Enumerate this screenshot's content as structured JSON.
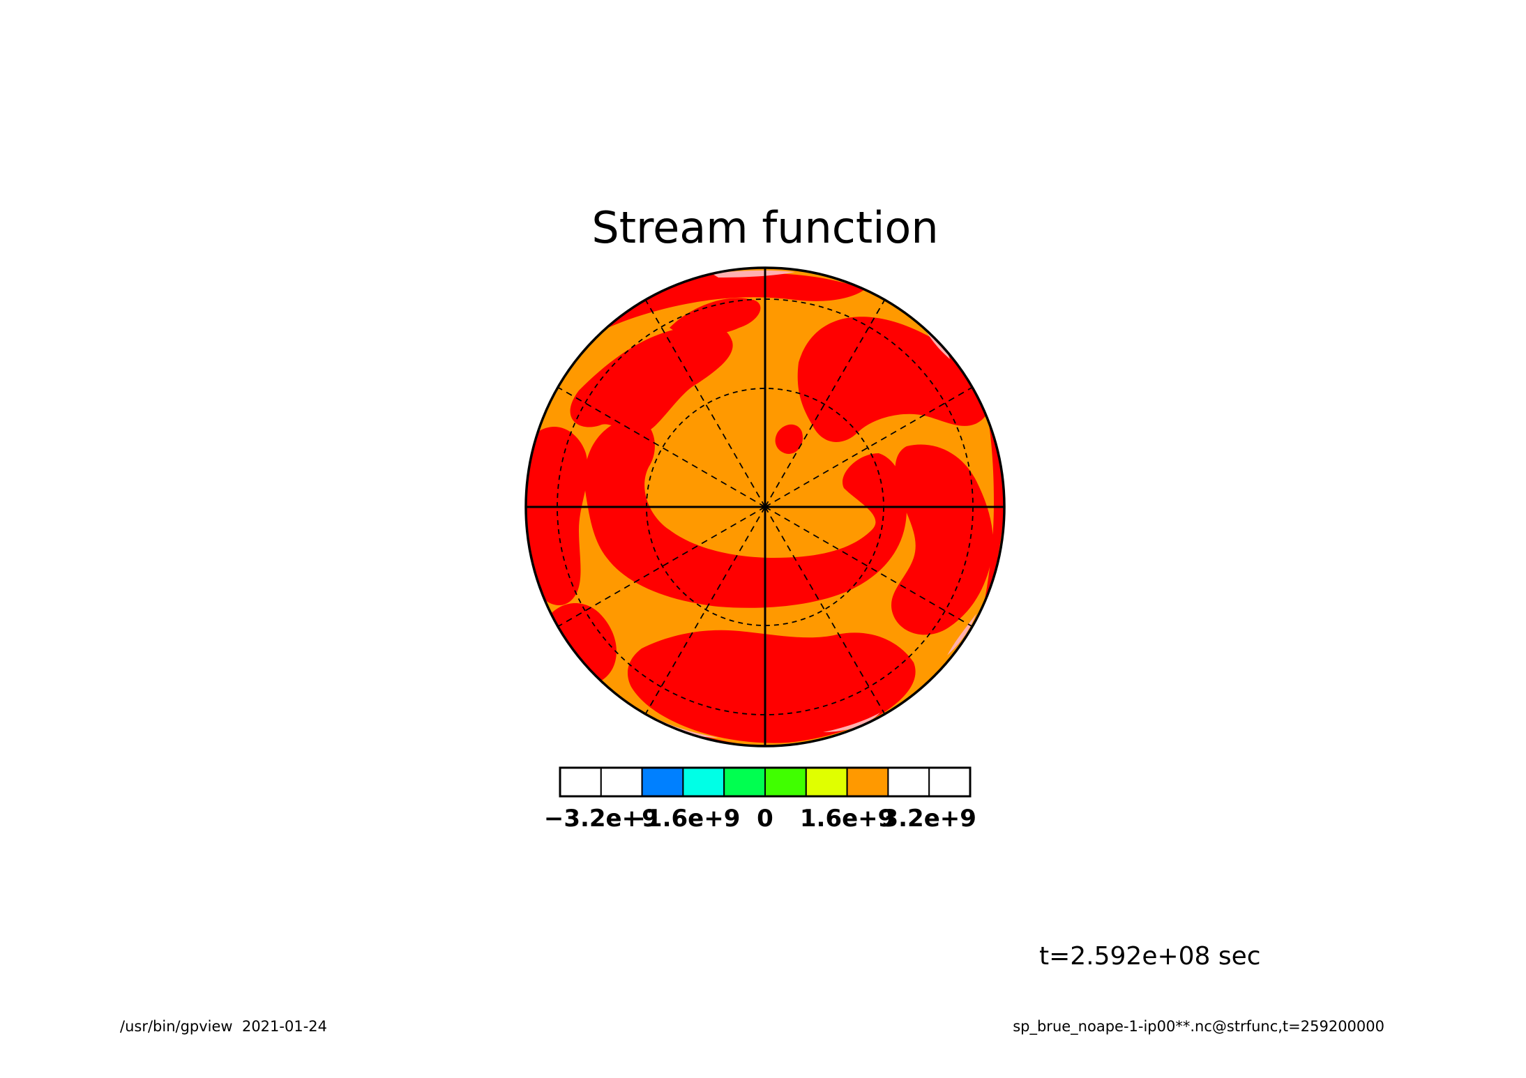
{
  "chart_data": {
    "type": "heatmap",
    "projection": "polar stereographic",
    "title": "Stream function",
    "colorbar": {
      "tick_labels": [
        "−3.2e+9",
        "−1.6e+9",
        "0",
        "1.6e+9",
        "3.2e+9"
      ],
      "tick_values": [
        -3200000000,
        -1600000000,
        0,
        1600000000,
        3200000000
      ],
      "levels": [
        -4000000000,
        -3200000000,
        -2400000000,
        -1600000000,
        -800000000,
        0,
        800000000,
        1600000000,
        2400000000,
        3200000000,
        4000000000
      ],
      "colors": [
        "#ffffff",
        "#ffffff",
        "#0080ff",
        "#00ffe6",
        "#00ff50",
        "#40ff00",
        "#e0ff00",
        "#ff9900",
        "#ffffff",
        "#ffffff"
      ]
    },
    "dominant_fill_colors": {
      "orange": "#ff9900",
      "red": "#ff0000",
      "pink": "#ffb0b0"
    },
    "grid": true,
    "latitude_circles_dashed": 3,
    "meridian_spokes_dashed": 12
  },
  "annotation": {
    "time": "t=2.592e+08 sec"
  },
  "footer": {
    "left": "/usr/bin/gpview  2021-01-24",
    "right": "sp_brue_noape-1-ip00**.nc@strfunc,t=259200000"
  }
}
